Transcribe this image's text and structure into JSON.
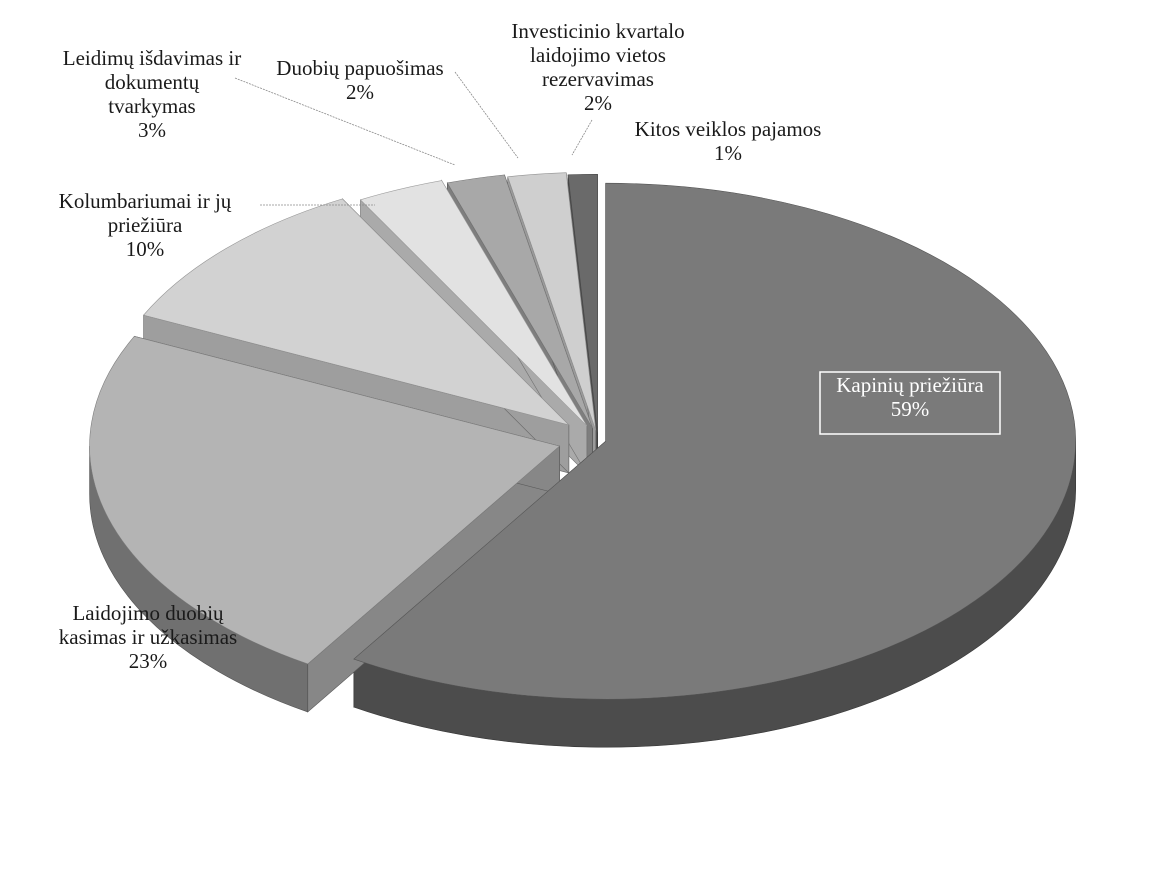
{
  "chart_data": {
    "type": "pie",
    "style": "3d-exploded",
    "title": "",
    "slices": [
      {
        "label": "Kapinių priežiūra",
        "value": 59,
        "value_label": "59%",
        "color": "#7a7a7a"
      },
      {
        "label": "Laidojimo duobių kasimas ir užkasimas",
        "value": 23,
        "value_label": "23%",
        "color": "#b4b4b4"
      },
      {
        "label": "Kolumbariumai ir jų priežiūra",
        "value": 10,
        "value_label": "10%",
        "color": "#d2d2d2"
      },
      {
        "label": "Leidimų išdavimas ir dokumentų tvarkymas",
        "value": 3,
        "value_label": "3%",
        "color": "#e2e2e2"
      },
      {
        "label": "Duobių papuošimas",
        "value": 2,
        "value_label": "2%",
        "color": "#a8a8a8"
      },
      {
        "label": "Investicinio kvartalo laidojimo vietos rezervavimas",
        "value": 2,
        "value_label": "2%",
        "color": "#cfcfcf"
      },
      {
        "label": "Kitos veiklos pajamos",
        "value": 1,
        "value_label": "1%",
        "color": "#6a6a6a"
      }
    ],
    "label_lines": [
      [
        "Kapinių priežiūra",
        "59%"
      ],
      [
        "Laidojimo duobių",
        "kasimas ir užkasimas",
        "23%"
      ],
      [
        "Kolumbariumai ir jų",
        "priežiūra",
        "10%"
      ],
      [
        "Leidimų išdavimas ir",
        "dokumentų",
        "tvarkymas",
        "3%"
      ],
      [
        "Duobių papuošimas",
        "2%"
      ],
      [
        "Investicinio kvartalo",
        "laidojimo vietos",
        "rezervavimas",
        "2%"
      ],
      [
        "Kitos veiklos pajamos",
        "1%"
      ]
    ]
  }
}
